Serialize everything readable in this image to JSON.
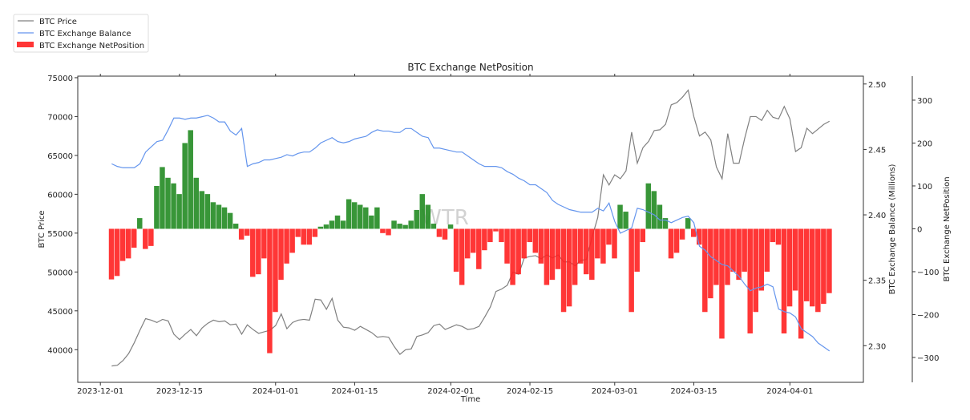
{
  "chart_data": {
    "type": "bar+line",
    "title": "BTC Exchange NetPosition",
    "xlabel": "Time",
    "x_ticks": [
      "2023-12-01",
      "2023-12-15",
      "2024-01-01",
      "2024-01-15",
      "2024-02-01",
      "2024-02-15",
      "2024-03-01",
      "2024-03-15",
      "2024-04-01"
    ],
    "legend": {
      "placement": "top-left (outside plot)",
      "entries": [
        "BTC Price",
        "BTC Exchange Balance",
        "BTC Exchange NetPosition"
      ]
    },
    "watermark": "WTR",
    "grid": false,
    "axes": {
      "price": {
        "label": "BTC Price",
        "side": "left",
        "ylim": [
          35800,
          75200
        ],
        "ticks": [
          "40000",
          "45000",
          "50000",
          "55000",
          "60000",
          "65000",
          "70000",
          "75000"
        ]
      },
      "balance": {
        "label": "BTC Exchange Balance (Millions)",
        "side": "right",
        "ylim": [
          2.272,
          2.506
        ],
        "ticks": [
          "2.30",
          "2.35",
          "2.40",
          "2.45",
          "2.50"
        ]
      },
      "netposition": {
        "label": "BTC Exchange NetPosition",
        "side": "right-outer",
        "ylim": [
          -358,
          356
        ],
        "ticks": [
          "−300",
          "−200",
          "−100",
          "0",
          "100",
          "200",
          "300"
        ]
      }
    },
    "colors": {
      "price": "#808080",
      "balance": "#6495ed",
      "positive": "#228b22",
      "negative": "#ff2020"
    },
    "dates": [
      "2023-12-03",
      "2023-12-04",
      "2023-12-05",
      "2023-12-06",
      "2023-12-07",
      "2023-12-08",
      "2023-12-09",
      "2023-12-10",
      "2023-12-11",
      "2023-12-12",
      "2023-12-13",
      "2023-12-14",
      "2023-12-15",
      "2023-12-16",
      "2023-12-17",
      "2023-12-18",
      "2023-12-19",
      "2023-12-20",
      "2023-12-21",
      "2023-12-22",
      "2023-12-23",
      "2023-12-24",
      "2023-12-25",
      "2023-12-26",
      "2023-12-27",
      "2023-12-28",
      "2023-12-29",
      "2023-12-30",
      "2023-12-31",
      "2024-01-01",
      "2024-01-02",
      "2024-01-03",
      "2024-01-04",
      "2024-01-05",
      "2024-01-06",
      "2024-01-07",
      "2024-01-08",
      "2024-01-09",
      "2024-01-10",
      "2024-01-11",
      "2024-01-12",
      "2024-01-13",
      "2024-01-14",
      "2024-01-15",
      "2024-01-16",
      "2024-01-17",
      "2024-01-18",
      "2024-01-19",
      "2024-01-20",
      "2024-01-21",
      "2024-01-22",
      "2024-01-23",
      "2024-01-24",
      "2024-01-25",
      "2024-01-26",
      "2024-01-27",
      "2024-01-28",
      "2024-01-29",
      "2024-01-30",
      "2024-01-31",
      "2024-02-01",
      "2024-02-02",
      "2024-02-03",
      "2024-02-04",
      "2024-02-05",
      "2024-02-06",
      "2024-02-07",
      "2024-02-08",
      "2024-02-09",
      "2024-02-10",
      "2024-02-11",
      "2024-02-12",
      "2024-02-13",
      "2024-02-14",
      "2024-02-15",
      "2024-02-16",
      "2024-02-17",
      "2024-02-18",
      "2024-02-19",
      "2024-02-20",
      "2024-02-21",
      "2024-02-22",
      "2024-02-23",
      "2024-02-24",
      "2024-02-25",
      "2024-02-26",
      "2024-02-27",
      "2024-02-28",
      "2024-02-29",
      "2024-03-01",
      "2024-03-02",
      "2024-03-03",
      "2024-03-04",
      "2024-03-05",
      "2024-03-06",
      "2024-03-07",
      "2024-03-08",
      "2024-03-09",
      "2024-03-10",
      "2024-03-11",
      "2024-03-12",
      "2024-03-13",
      "2024-03-14",
      "2024-03-15",
      "2024-03-16",
      "2024-03-17",
      "2024-03-18",
      "2024-03-19",
      "2024-03-20",
      "2024-03-21",
      "2024-03-22",
      "2024-03-23",
      "2024-03-24",
      "2024-03-25",
      "2024-03-26",
      "2024-03-27",
      "2024-03-28",
      "2024-03-29",
      "2024-03-30",
      "2024-03-31",
      "2024-04-01",
      "2024-04-02",
      "2024-04-03",
      "2024-04-04",
      "2024-04-05",
      "2024-04-06",
      "2024-04-07",
      "2024-04-08"
    ],
    "series": [
      {
        "name": "BTC Price",
        "type": "line",
        "axis": "price",
        "values": [
          37900,
          38000,
          38600,
          39500,
          40900,
          42500,
          44000,
          43800,
          43500,
          43900,
          43700,
          42000,
          41300,
          42000,
          42600,
          41800,
          42800,
          43400,
          43800,
          43600,
          43700,
          43200,
          43300,
          42000,
          43200,
          42600,
          42100,
          42300,
          42500,
          43100,
          44600,
          42700,
          43500,
          43800,
          43900,
          43800,
          46500,
          46400,
          45200,
          46600,
          43800,
          42900,
          42800,
          42500,
          43000,
          42600,
          42200,
          41600,
          41700,
          41600,
          40400,
          39400,
          40000,
          40100,
          41700,
          41900,
          42200,
          43100,
          43300,
          42600,
          42900,
          43200,
          43000,
          42600,
          42700,
          43000,
          44200,
          45500,
          47500,
          47800,
          48300,
          50000,
          49700,
          51800,
          52000,
          52100,
          51700,
          52200,
          51800,
          52200,
          51300,
          51300,
          50800,
          51500,
          51600,
          54500,
          57000,
          62500,
          61200,
          62500,
          62000,
          63000,
          68000,
          64000,
          66000,
          66800,
          68200,
          68300,
          69000,
          71500,
          71800,
          72500,
          73400,
          70000,
          67500,
          68000,
          67000,
          63500,
          62000,
          67800,
          64000,
          64000,
          67200,
          70000,
          70000,
          69500,
          70800,
          69900,
          69700,
          71300,
          69700,
          65500,
          66000,
          68500,
          67800,
          68400,
          69000,
          69400
        ]
      },
      {
        "name": "BTC Exchange Balance",
        "type": "line",
        "axis": "balance",
        "values": [
          2.439,
          2.437,
          2.436,
          2.436,
          2.436,
          2.439,
          2.448,
          2.452,
          2.456,
          2.457,
          2.465,
          2.474,
          2.474,
          2.473,
          2.474,
          2.474,
          2.475,
          2.476,
          2.474,
          2.471,
          2.471,
          2.464,
          2.461,
          2.466,
          2.437,
          2.439,
          2.44,
          2.442,
          2.442,
          2.443,
          2.444,
          2.446,
          2.445,
          2.447,
          2.448,
          2.448,
          2.451,
          2.455,
          2.457,
          2.459,
          2.456,
          2.455,
          2.456,
          2.458,
          2.459,
          2.46,
          2.463,
          2.465,
          2.464,
          2.464,
          2.463,
          2.463,
          2.466,
          2.466,
          2.463,
          2.46,
          2.459,
          2.451,
          2.451,
          2.45,
          2.449,
          2.448,
          2.448,
          2.445,
          2.442,
          2.439,
          2.437,
          2.437,
          2.437,
          2.436,
          2.433,
          2.431,
          2.428,
          2.426,
          2.423,
          2.423,
          2.42,
          2.417,
          2.411,
          2.408,
          2.406,
          2.404,
          2.403,
          2.402,
          2.402,
          2.402,
          2.405,
          2.403,
          2.409,
          2.395,
          2.386,
          2.388,
          2.39,
          2.405,
          2.404,
          2.402,
          2.4,
          2.396,
          2.396,
          2.394,
          2.396,
          2.398,
          2.399,
          2.394,
          2.376,
          2.373,
          2.368,
          2.365,
          2.362,
          2.361,
          2.357,
          2.353,
          2.347,
          2.342,
          2.344,
          2.345,
          2.347,
          2.345,
          2.328,
          2.326,
          2.325,
          2.322,
          2.313,
          2.31,
          2.307,
          2.302,
          2.299,
          2.296
        ]
      },
      {
        "name": "BTC Exchange NetPosition",
        "type": "bar",
        "axis": "netposition",
        "values": [
          -118,
          -110,
          -75,
          -69,
          -44,
          25,
          -47,
          -40,
          100,
          144,
          119,
          106,
          81,
          200,
          230,
          119,
          88,
          81,
          62,
          56,
          50,
          37,
          12,
          -25,
          -16,
          -112,
          -106,
          -69,
          -290,
          -194,
          -119,
          -81,
          -56,
          -19,
          -37,
          -37,
          -19,
          5,
          10,
          19,
          31,
          19,
          69,
          62,
          56,
          50,
          31,
          50,
          -10,
          -15,
          19,
          12,
          9,
          19,
          44,
          81,
          56,
          12,
          -19,
          -25,
          10,
          -100,
          -131,
          -69,
          -56,
          -94,
          -50,
          -31,
          -6,
          -31,
          -81,
          -131,
          -106,
          -69,
          -31,
          -56,
          -81,
          -131,
          -119,
          -94,
          -194,
          -181,
          -131,
          -81,
          -106,
          -119,
          -69,
          -81,
          -37,
          -69,
          56,
          40,
          -194,
          -100,
          -31,
          106,
          88,
          56,
          25,
          -69,
          -56,
          -25,
          25,
          -19,
          -37,
          -194,
          -162,
          -131,
          -256,
          -131,
          -100,
          -119,
          -100,
          -244,
          -194,
          -144,
          -100,
          -31,
          -37,
          -244,
          -181,
          -144,
          -256,
          -169,
          -181,
          -194,
          -175,
          -150
        ]
      }
    ]
  }
}
